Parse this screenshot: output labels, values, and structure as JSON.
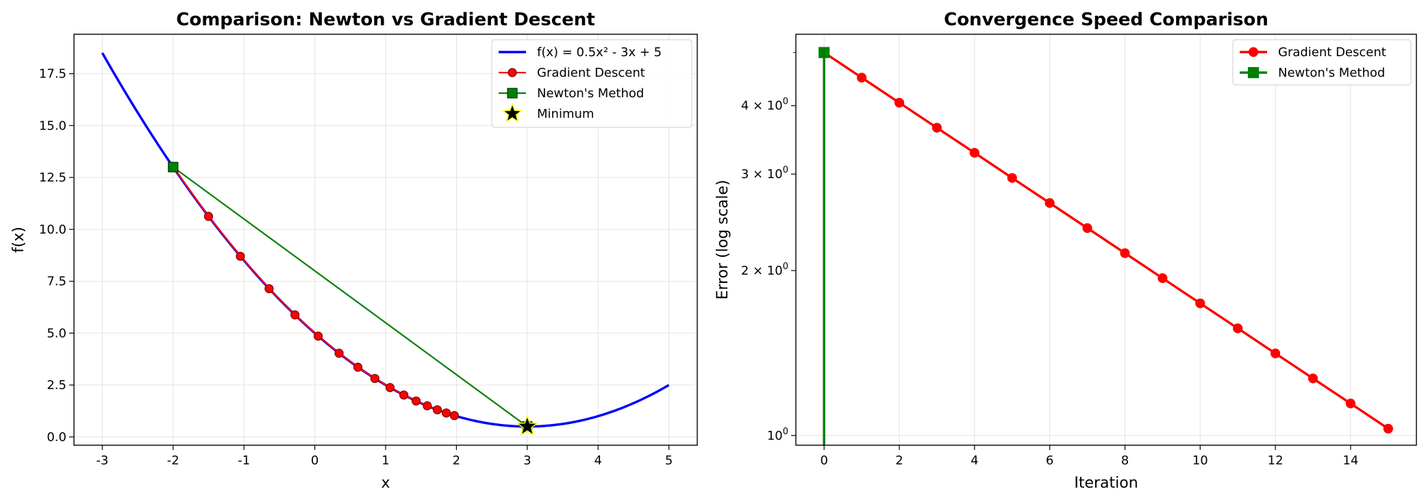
{
  "chart_data": [
    {
      "type": "line",
      "title": "Comparison: Newton vs Gradient Descent",
      "xlabel": "x",
      "ylabel": "f(x)",
      "xlim": [
        -3.4,
        5.4
      ],
      "ylim": [
        -0.4,
        19.4
      ],
      "xticks": [
        -3,
        -2,
        -1,
        0,
        1,
        2,
        3,
        4,
        5
      ],
      "xtick_labels": [
        "-3",
        "-2",
        "-1",
        "0",
        "1",
        "2",
        "3",
        "4",
        "5"
      ],
      "yticks": [
        0,
        2.5,
        5,
        7.5,
        10,
        12.5,
        15,
        17.5
      ],
      "ytick_labels": [
        "0.0",
        "2.5",
        "5.0",
        "7.5",
        "10.0",
        "12.5",
        "15.0",
        "17.5"
      ],
      "grid": true,
      "legend_position": "top-right",
      "function": {
        "a": 0.5,
        "b": -3,
        "c": 5,
        "x_range": [
          -3,
          5
        ]
      },
      "series": [
        {
          "name": "f(x) = 0.5x² - 3x + 5",
          "kind": "curve",
          "color": "#0000ff"
        },
        {
          "name": "Gradient Descent",
          "kind": "line-marker",
          "marker": "circle",
          "color": "#ff0000",
          "x": [
            -2.0,
            -1.5,
            -1.05,
            -0.645,
            -0.28,
            0.048,
            0.343,
            0.609,
            0.848,
            1.063,
            1.257,
            1.431,
            1.588,
            1.73,
            1.857,
            1.971
          ],
          "y": [
            13.0,
            10.625,
            8.701,
            7.143,
            5.879,
            4.857,
            4.03,
            3.358,
            2.816,
            2.376,
            2.02,
            1.731,
            1.498,
            1.306,
            1.153,
            1.029
          ]
        },
        {
          "name": "Newton's Method",
          "kind": "line-marker",
          "marker": "square",
          "color": "#008000",
          "x": [
            -2,
            3
          ],
          "y": [
            13,
            0.5
          ]
        },
        {
          "name": "Minimum",
          "kind": "marker",
          "marker": "star",
          "color": "#000000",
          "edge_color": "#ffff00",
          "x": [
            3
          ],
          "y": [
            0.5
          ]
        }
      ]
    },
    {
      "type": "line",
      "title": "Convergence Speed Comparison",
      "xlabel": "Iteration",
      "ylabel": "Error (log scale)",
      "yscale": "log",
      "xlim": [
        -0.75,
        15.75
      ],
      "ylim": [
        0.96,
        5.4
      ],
      "xticks": [
        0,
        2,
        4,
        6,
        8,
        10,
        12,
        14
      ],
      "xtick_labels": [
        "0",
        "2",
        "4",
        "6",
        "8",
        "10",
        "12",
        "14"
      ],
      "yticks": [
        1,
        2,
        3,
        4
      ],
      "ytick_labels": [
        {
          "mantissa": "",
          "base": "10",
          "exp": "0"
        },
        {
          "mantissa": "2 × ",
          "base": "10",
          "exp": "0"
        },
        {
          "mantissa": "3 × ",
          "base": "10",
          "exp": "0"
        },
        {
          "mantissa": "4 × ",
          "base": "10",
          "exp": "0"
        }
      ],
      "minor_yticks": [
        5
      ],
      "grid": true,
      "legend_position": "top-right",
      "series": [
        {
          "name": "Gradient Descent",
          "marker": "circle",
          "color": "#ff0000",
          "x": [
            0,
            1,
            2,
            3,
            4,
            5,
            6,
            7,
            8,
            9,
            10,
            11,
            12,
            13,
            14,
            15
          ],
          "y": [
            5.0,
            4.5,
            4.05,
            3.645,
            3.281,
            2.952,
            2.657,
            2.391,
            2.152,
            1.937,
            1.743,
            1.569,
            1.412,
            1.271,
            1.144,
            1.029
          ]
        },
        {
          "name": "Newton's Method",
          "marker": "square",
          "color": "#008000",
          "x": [
            0,
            0
          ],
          "y": [
            5.0,
            0.0
          ]
        }
      ]
    }
  ]
}
